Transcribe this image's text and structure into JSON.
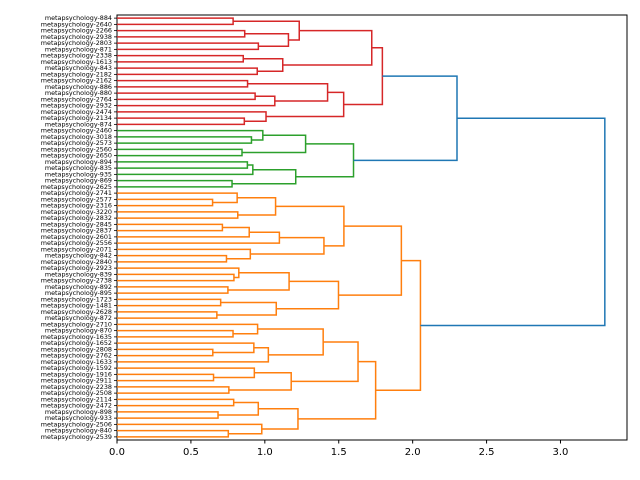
{
  "figure": {
    "background": "#ffffff",
    "title": ""
  },
  "chart_data": {
    "type": "dendrogram",
    "orientation": "left-labels",
    "title": "",
    "xlabel": "",
    "ylabel": "",
    "xlim": [
      0.0,
      3.45
    ],
    "x_ticks": [
      "0.0",
      "0.5",
      "1.0",
      "1.5",
      "2.0",
      "2.5",
      "3.0"
    ],
    "x_tick_values": [
      0.0,
      0.5,
      1.0,
      1.5,
      2.0,
      2.5,
      3.0
    ],
    "grid": false,
    "legend": "none",
    "link_color_above_threshold": "#1f77b4",
    "spine_color": "#000000",
    "clusters": [
      {
        "name": "cluster-red",
        "color": "#d62728",
        "root_height": 2.0,
        "leaf_count": 18
      },
      {
        "name": "cluster-green",
        "color": "#2ca02c",
        "root_height": 1.6,
        "leaf_count": 10
      },
      {
        "name": "cluster-orange",
        "color": "#ff7f0e",
        "root_height": 2.2,
        "leaf_count": 40
      }
    ],
    "merges": [
      {
        "children": [
          "cluster-red",
          "cluster-green"
        ],
        "height": 2.3
      },
      {
        "children": [
          "cluster-red+cluster-green",
          "cluster-orange"
        ],
        "height": 3.3
      }
    ],
    "leaves": [
      {
        "label": "metapsychology-884",
        "cluster": 0
      },
      {
        "label": "metapsychology-2640",
        "cluster": 0
      },
      {
        "label": "metapsychology-2266",
        "cluster": 0
      },
      {
        "label": "metapsychology-2938",
        "cluster": 0
      },
      {
        "label": "metapsychology-2803",
        "cluster": 0
      },
      {
        "label": "metapsychology-871",
        "cluster": 0
      },
      {
        "label": "metapsychology-2338",
        "cluster": 0
      },
      {
        "label": "metapsychology-1613",
        "cluster": 0
      },
      {
        "label": "metapsychology-843",
        "cluster": 0
      },
      {
        "label": "metapsychology-2182",
        "cluster": 0
      },
      {
        "label": "metapsychology-2162",
        "cluster": 0
      },
      {
        "label": "metapsychology-886",
        "cluster": 0
      },
      {
        "label": "metapsychology-880",
        "cluster": 0
      },
      {
        "label": "metapsychology-2764",
        "cluster": 0
      },
      {
        "label": "metapsychology-2932",
        "cluster": 0
      },
      {
        "label": "metapsychology-2474",
        "cluster": 0
      },
      {
        "label": "metapsychology-2134",
        "cluster": 0
      },
      {
        "label": "metapsychology-874",
        "cluster": 0
      },
      {
        "label": "metapsychology-2460",
        "cluster": 1
      },
      {
        "label": "metapsychology-3018",
        "cluster": 1
      },
      {
        "label": "metapsychology-2573",
        "cluster": 1
      },
      {
        "label": "metapsychology-2560",
        "cluster": 1
      },
      {
        "label": "metapsychology-2650",
        "cluster": 1
      },
      {
        "label": "metapsychology-894",
        "cluster": 1
      },
      {
        "label": "metapsychology-835",
        "cluster": 1
      },
      {
        "label": "metapsychology-935",
        "cluster": 1
      },
      {
        "label": "metapsychology-869",
        "cluster": 1
      },
      {
        "label": "metapsychology-2625",
        "cluster": 1
      },
      {
        "label": "metapsychology-2741",
        "cluster": 2
      },
      {
        "label": "metapsychology-2577",
        "cluster": 2
      },
      {
        "label": "metapsychology-2316",
        "cluster": 2
      },
      {
        "label": "metapsychology-3220",
        "cluster": 2
      },
      {
        "label": "metapsychology-2832",
        "cluster": 2
      },
      {
        "label": "metapsychology-2845",
        "cluster": 2
      },
      {
        "label": "metapsychology-2837",
        "cluster": 2
      },
      {
        "label": "metapsychology-2601",
        "cluster": 2
      },
      {
        "label": "metapsychology-2556",
        "cluster": 2
      },
      {
        "label": "metapsychology-2071",
        "cluster": 2
      },
      {
        "label": "metapsychology-842",
        "cluster": 2
      },
      {
        "label": "metapsychology-2840",
        "cluster": 2
      },
      {
        "label": "metapsychology-2923",
        "cluster": 2
      },
      {
        "label": "metapsychology-839",
        "cluster": 2
      },
      {
        "label": "metapsychology-2738",
        "cluster": 2
      },
      {
        "label": "metapsychology-892",
        "cluster": 2
      },
      {
        "label": "metapsychology-895",
        "cluster": 2
      },
      {
        "label": "metapsychology-1723",
        "cluster": 2
      },
      {
        "label": "metapsychology-1481",
        "cluster": 2
      },
      {
        "label": "metapsychology-2628",
        "cluster": 2
      },
      {
        "label": "metapsychology-872",
        "cluster": 2
      },
      {
        "label": "metapsychology-2710",
        "cluster": 2
      },
      {
        "label": "metapsychology-870",
        "cluster": 2
      },
      {
        "label": "metapsychology-1635",
        "cluster": 2
      },
      {
        "label": "metapsychology-1652",
        "cluster": 2
      },
      {
        "label": "metapsychology-2808",
        "cluster": 2
      },
      {
        "label": "metapsychology-2762",
        "cluster": 2
      },
      {
        "label": "metapsychology-1633",
        "cluster": 2
      },
      {
        "label": "metapsychology-1592",
        "cluster": 2
      },
      {
        "label": "metapsychology-1916",
        "cluster": 2
      },
      {
        "label": "metapsychology-2911",
        "cluster": 2
      },
      {
        "label": "metapsychology-2238",
        "cluster": 2
      },
      {
        "label": "metapsychology-2508",
        "cluster": 2
      },
      {
        "label": "metapsychology-2114",
        "cluster": 2
      },
      {
        "label": "metapsychology-2472",
        "cluster": 2
      },
      {
        "label": "metapsychology-898",
        "cluster": 2
      },
      {
        "label": "metapsychology-933",
        "cluster": 2
      },
      {
        "label": "metapsychology-2506",
        "cluster": 2
      },
      {
        "label": "metapsychology-840",
        "cluster": 2
      },
      {
        "label": "metapsychology-2539",
        "cluster": 2
      }
    ]
  }
}
